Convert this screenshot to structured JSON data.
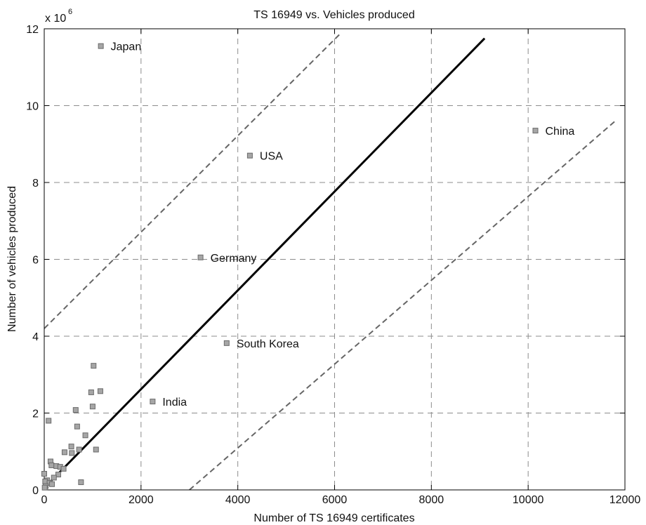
{
  "chart_data": {
    "type": "scatter",
    "title": "TS 16949 vs. Vehicles produced",
    "xlabel": "Number of TS 16949 certificates",
    "ylabel": "Number of vehicles produced",
    "y_multiplier": "x 10",
    "y_exponent": "6",
    "xlim": [
      0,
      12000
    ],
    "ylim": [
      0,
      12
    ],
    "x_ticks": [
      0,
      2000,
      4000,
      6000,
      8000,
      10000,
      12000
    ],
    "y_ticks": [
      0,
      2,
      4,
      6,
      8,
      10,
      12
    ],
    "x_tick_labels": [
      "0",
      "2000",
      "4000",
      "6000",
      "8000",
      "10000",
      "12000"
    ],
    "y_tick_labels": [
      "0",
      "2",
      "4",
      "6",
      "8",
      "10",
      "12"
    ],
    "grid": true,
    "colors": {
      "marker_fill": "#a6a6a6",
      "marker_stroke": "#6b6b6b",
      "fit_line": "#000000",
      "bound_lines": "#666666",
      "grid": "#8c8c8c"
    },
    "labeled_points": [
      {
        "label": "Japan",
        "x": 1170,
        "y": 11.55
      },
      {
        "label": "China",
        "x": 10150,
        "y": 9.35
      },
      {
        "label": "USA",
        "x": 4250,
        "y": 8.7
      },
      {
        "label": "Germany",
        "x": 3230,
        "y": 6.05
      },
      {
        "label": "South Korea",
        "x": 3770,
        "y": 3.82
      },
      {
        "label": "India",
        "x": 2240,
        "y": 2.3
      }
    ],
    "points": [
      {
        "x": 1020,
        "y": 3.23
      },
      {
        "x": 1160,
        "y": 2.57
      },
      {
        "x": 970,
        "y": 2.54
      },
      {
        "x": 1000,
        "y": 2.17
      },
      {
        "x": 650,
        "y": 2.08
      },
      {
        "x": 90,
        "y": 1.8
      },
      {
        "x": 680,
        "y": 1.65
      },
      {
        "x": 850,
        "y": 1.42
      },
      {
        "x": 560,
        "y": 1.13
      },
      {
        "x": 1070,
        "y": 1.05
      },
      {
        "x": 720,
        "y": 1.05
      },
      {
        "x": 420,
        "y": 0.98
      },
      {
        "x": 570,
        "y": 0.96
      },
      {
        "x": 130,
        "y": 0.74
      },
      {
        "x": 150,
        "y": 0.64
      },
      {
        "x": 250,
        "y": 0.62
      },
      {
        "x": 330,
        "y": 0.6
      },
      {
        "x": 400,
        "y": 0.55
      },
      {
        "x": 0,
        "y": 0.42
      },
      {
        "x": 290,
        "y": 0.4
      },
      {
        "x": 200,
        "y": 0.32
      },
      {
        "x": 60,
        "y": 0.25
      },
      {
        "x": 20,
        "y": 0.22
      },
      {
        "x": 110,
        "y": 0.18
      },
      {
        "x": 160,
        "y": 0.15
      },
      {
        "x": 760,
        "y": 0.2
      },
      {
        "x": 30,
        "y": 0.1
      },
      {
        "x": 10,
        "y": 0.06
      }
    ],
    "fit_line": {
      "x": [
        0,
        9100
      ],
      "y": [
        0.05,
        11.75
      ]
    },
    "bound_lines": [
      {
        "x": [
          0,
          6100
        ],
        "y": [
          4.2,
          11.85
        ]
      },
      {
        "x": [
          3000,
          11800
        ],
        "y": [
          0,
          9.6
        ]
      }
    ]
  }
}
